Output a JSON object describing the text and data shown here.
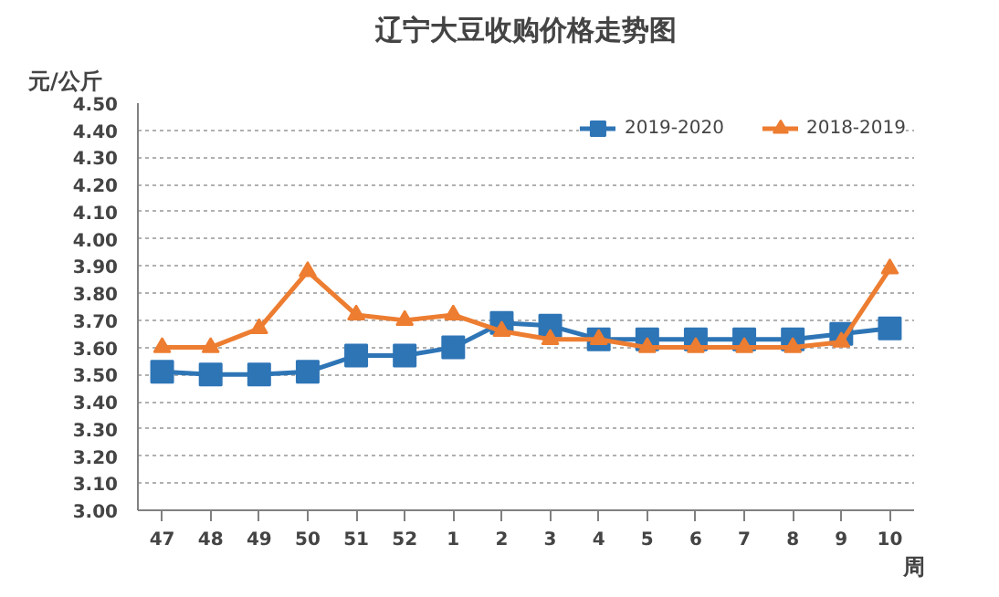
{
  "chart_data": {
    "type": "line",
    "title": "辽宁大豆收购价格走势图",
    "ylabel": "元/公斤",
    "xlabel": "周",
    "categories": [
      "47",
      "48",
      "49",
      "50",
      "51",
      "52",
      "1",
      "2",
      "3",
      "4",
      "5",
      "6",
      "7",
      "8",
      "9",
      "10"
    ],
    "series": [
      {
        "name": "2019-2020",
        "color": "#2e75b6",
        "marker": "square",
        "values": [
          3.51,
          3.5,
          3.5,
          3.51,
          3.57,
          3.57,
          3.6,
          3.69,
          3.68,
          3.63,
          3.63,
          3.63,
          3.63,
          3.63,
          3.65,
          3.67
        ]
      },
      {
        "name": "2018-2019",
        "color": "#ed7d31",
        "marker": "triangle",
        "values": [
          3.6,
          3.6,
          3.67,
          3.88,
          3.72,
          3.7,
          3.72,
          3.66,
          3.63,
          3.63,
          3.6,
          3.6,
          3.6,
          3.6,
          3.62,
          3.89
        ]
      }
    ],
    "ylim": [
      3.0,
      4.5
    ],
    "yticks": [
      {
        "value": 3.0,
        "label": "3.00"
      },
      {
        "value": 3.1,
        "label": "3.10"
      },
      {
        "value": 3.2,
        "label": "3.20"
      },
      {
        "value": 3.3,
        "label": "3.30"
      },
      {
        "value": 3.4,
        "label": "3.40"
      },
      {
        "value": 3.5,
        "label": "3.50"
      },
      {
        "value": 3.6,
        "label": "3.60"
      },
      {
        "value": 3.7,
        "label": "3.70"
      },
      {
        "value": 3.8,
        "label": "3.80"
      },
      {
        "value": 3.9,
        "label": "3.90"
      },
      {
        "value": 4.0,
        "label": "4.00"
      },
      {
        "value": 4.1,
        "label": "4.10"
      },
      {
        "value": 4.2,
        "label": "4.20"
      },
      {
        "value": 4.3,
        "label": "4.30"
      },
      {
        "value": 4.4,
        "label": "4.40"
      },
      {
        "value": 4.5,
        "label": "4.50"
      }
    ],
    "grid": "y",
    "legend": "top right",
    "line_style": "solid"
  }
}
